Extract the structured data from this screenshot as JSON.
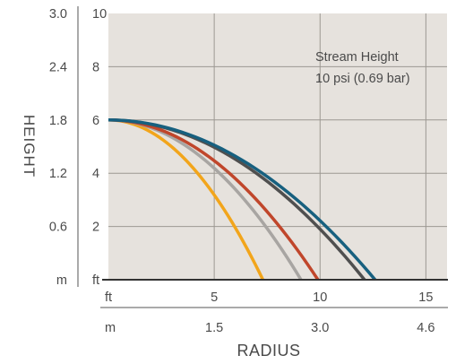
{
  "chart_data": {
    "type": "line",
    "annotation": [
      "Stream Height",
      "10 psi (0.69 bar)"
    ],
    "xlabel": "RADIUS",
    "ylabel": "HEIGHT",
    "x_unit_ft": "ft",
    "x_unit_m": "m",
    "y_unit_ft": "ft",
    "y_unit_m": "m",
    "x_ticks_ft": [
      "5",
      "10",
      "15"
    ],
    "x_ticks_m": [
      "1.5",
      "3.0",
      "4.6"
    ],
    "y_ticks_ft": [
      "2",
      "4",
      "6",
      "8",
      "10"
    ],
    "y_ticks_m": [
      "0.6",
      "1.2",
      "1.8",
      "2.4",
      "3.0"
    ],
    "xlim": [
      0,
      16
    ],
    "ylim": [
      0,
      10
    ],
    "grid": true,
    "plot_background": "#e6e2dd",
    "series": [
      {
        "color": "#f2a51b",
        "start_height": 6,
        "end_radius": 7.3
      },
      {
        "color": "#a8a5a2",
        "start_height": 6,
        "end_radius": 9.1
      },
      {
        "color": "#c0462b",
        "start_height": 6,
        "end_radius": 9.9
      },
      {
        "color": "#4f4f4f",
        "start_height": 6,
        "end_radius": 12.1
      },
      {
        "color": "#17607f",
        "start_height": 6,
        "end_radius": 12.6
      }
    ]
  }
}
